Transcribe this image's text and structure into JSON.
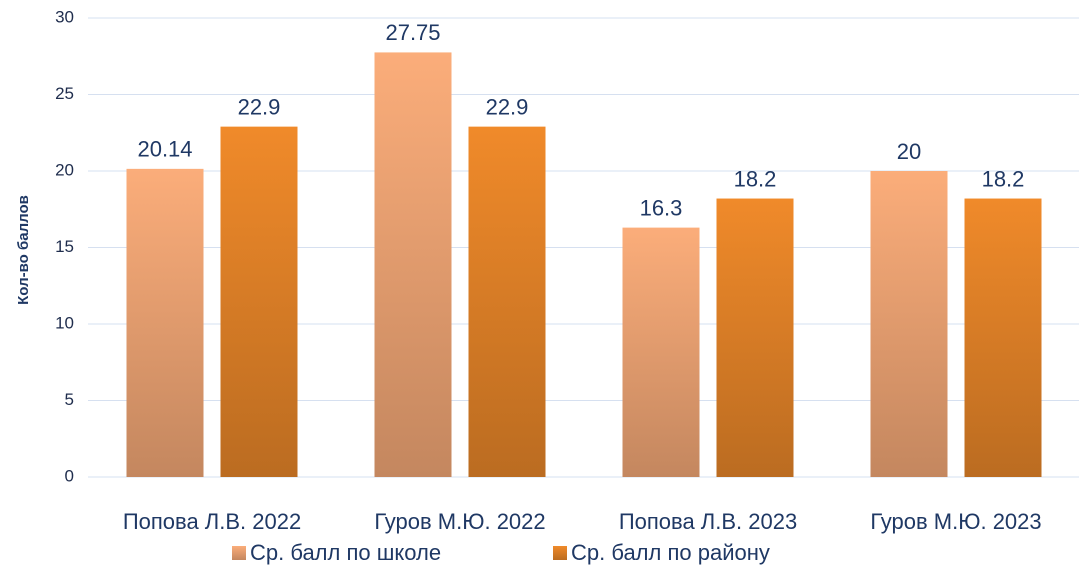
{
  "chart_data": {
    "type": "bar",
    "y_label": "Кол-во баллов",
    "categories": [
      "Попова Л.В. 2022",
      "Гуров М.Ю. 2022",
      "Попова Л.В. 2023",
      "Гуров М.Ю. 2023"
    ],
    "series": [
      {
        "name": "Ср. балл по школе",
        "color": "#fbad7a",
        "values": [
          20.14,
          27.75,
          16.3,
          20
        ]
      },
      {
        "name": "Ср. балл по району",
        "color": "#f08a2a",
        "values": [
          22.9,
          22.9,
          18.2,
          18.2
        ]
      }
    ],
    "ylim": [
      0,
      30
    ],
    "yticks": [
      0,
      5,
      10,
      15,
      20,
      25,
      30
    ],
    "grid": true,
    "legend": "bottom"
  }
}
